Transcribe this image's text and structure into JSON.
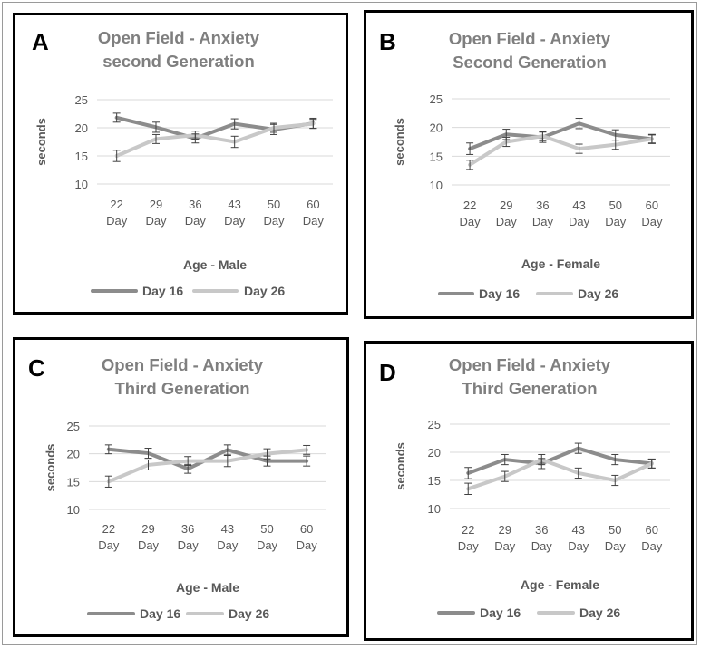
{
  "chart_data": [
    {
      "type": "line",
      "panel_label": "A",
      "title_lines": [
        "Open Field - Anxiety",
        "second Generation"
      ],
      "categories": [
        [
          "22",
          "Day"
        ],
        [
          "29",
          "Day"
        ],
        [
          "36",
          "Day"
        ],
        [
          "43",
          "Day"
        ],
        [
          "50",
          "Day"
        ],
        [
          "60",
          "Day"
        ]
      ],
      "xlabel": "Age - Male",
      "ylabel": "seconds",
      "ylim": [
        10,
        25
      ],
      "yticks": [
        "10",
        "15",
        "20",
        "25"
      ],
      "grid": true,
      "series": [
        {
          "name": "Day 16",
          "color": "#8c8c8c",
          "values": [
            21.8,
            20.1,
            18.1,
            20.7,
            19.7,
            20.8
          ],
          "errors": [
            0.8,
            0.9,
            0.8,
            0.9,
            0.9,
            0.9
          ]
        },
        {
          "name": "Day 26",
          "color": "#c8c8c8",
          "values": [
            15.0,
            18.0,
            18.7,
            17.5,
            20.0,
            20.7
          ],
          "errors": [
            1.0,
            0.8,
            0.7,
            1.0,
            0.8,
            0.8
          ]
        }
      ]
    },
    {
      "type": "line",
      "panel_label": "B",
      "title_lines": [
        "Open Field - Anxiety",
        "Second Generation"
      ],
      "categories": [
        [
          "22",
          "Day"
        ],
        [
          "29",
          "Day"
        ],
        [
          "36",
          "Day"
        ],
        [
          "43",
          "Day"
        ],
        [
          "50",
          "Day"
        ],
        [
          "60",
          "Day"
        ]
      ],
      "xlabel": "Age - Female",
      "ylabel": "seconds",
      "ylim": [
        10,
        25
      ],
      "yticks": [
        "10",
        "15",
        "20",
        "25"
      ],
      "grid": true,
      "series": [
        {
          "name": "Day 16",
          "color": "#8c8c8c",
          "values": [
            16.3,
            18.8,
            18.3,
            20.7,
            18.7,
            18.0
          ],
          "errors": [
            1.0,
            0.9,
            0.9,
            0.9,
            0.9,
            0.8
          ]
        },
        {
          "name": "Day 26",
          "color": "#c8c8c8",
          "values": [
            13.5,
            17.5,
            18.5,
            16.3,
            17.0,
            18.0
          ],
          "errors": [
            0.8,
            0.8,
            0.8,
            0.8,
            0.8,
            0.7
          ]
        }
      ]
    },
    {
      "type": "line",
      "panel_label": "C",
      "title_lines": [
        "Open Field - Anxiety",
        "Third Generation"
      ],
      "categories": [
        [
          "22",
          "Day"
        ],
        [
          "29",
          "Day"
        ],
        [
          "36",
          "Day"
        ],
        [
          "43",
          "Day"
        ],
        [
          "50",
          "Day"
        ],
        [
          "60",
          "Day"
        ]
      ],
      "xlabel": "Age - Male",
      "ylabel": "seconds",
      "ylim": [
        10,
        25
      ],
      "yticks": [
        "10",
        "15",
        "20",
        "25"
      ],
      "grid": true,
      "series": [
        {
          "name": "Day 16",
          "color": "#8c8c8c",
          "values": [
            20.8,
            20.1,
            17.3,
            20.7,
            18.7,
            18.7
          ],
          "errors": [
            0.8,
            0.9,
            0.8,
            0.9,
            0.9,
            0.9
          ]
        },
        {
          "name": "Day 26",
          "color": "#c8c8c8",
          "values": [
            15.0,
            18.0,
            18.7,
            18.7,
            20.0,
            20.7
          ],
          "errors": [
            1.0,
            0.9,
            0.8,
            1.0,
            0.9,
            0.8
          ]
        }
      ]
    },
    {
      "type": "line",
      "panel_label": "D",
      "title_lines": [
        "Open Field - Anxiety",
        "Third Generation"
      ],
      "categories": [
        [
          "22",
          "Day"
        ],
        [
          "29",
          "Day"
        ],
        [
          "36",
          "Day"
        ],
        [
          "43",
          "Day"
        ],
        [
          "50",
          "Day"
        ],
        [
          "60",
          "Day"
        ]
      ],
      "xlabel": "Age - Female",
      "ylabel": "seconds",
      "ylim": [
        10,
        25
      ],
      "yticks": [
        "10",
        "15",
        "20",
        "25"
      ],
      "grid": true,
      "series": [
        {
          "name": "Day 16",
          "color": "#8c8c8c",
          "values": [
            16.3,
            18.7,
            18.0,
            20.7,
            18.7,
            18.0
          ],
          "errors": [
            1.0,
            0.9,
            0.9,
            0.9,
            0.9,
            0.8
          ]
        },
        {
          "name": "Day 26",
          "color": "#c8c8c8",
          "values": [
            13.5,
            15.7,
            18.7,
            16.3,
            15.0,
            18.0
          ],
          "errors": [
            1.0,
            0.9,
            0.9,
            0.9,
            0.9,
            0.8
          ]
        }
      ]
    }
  ]
}
